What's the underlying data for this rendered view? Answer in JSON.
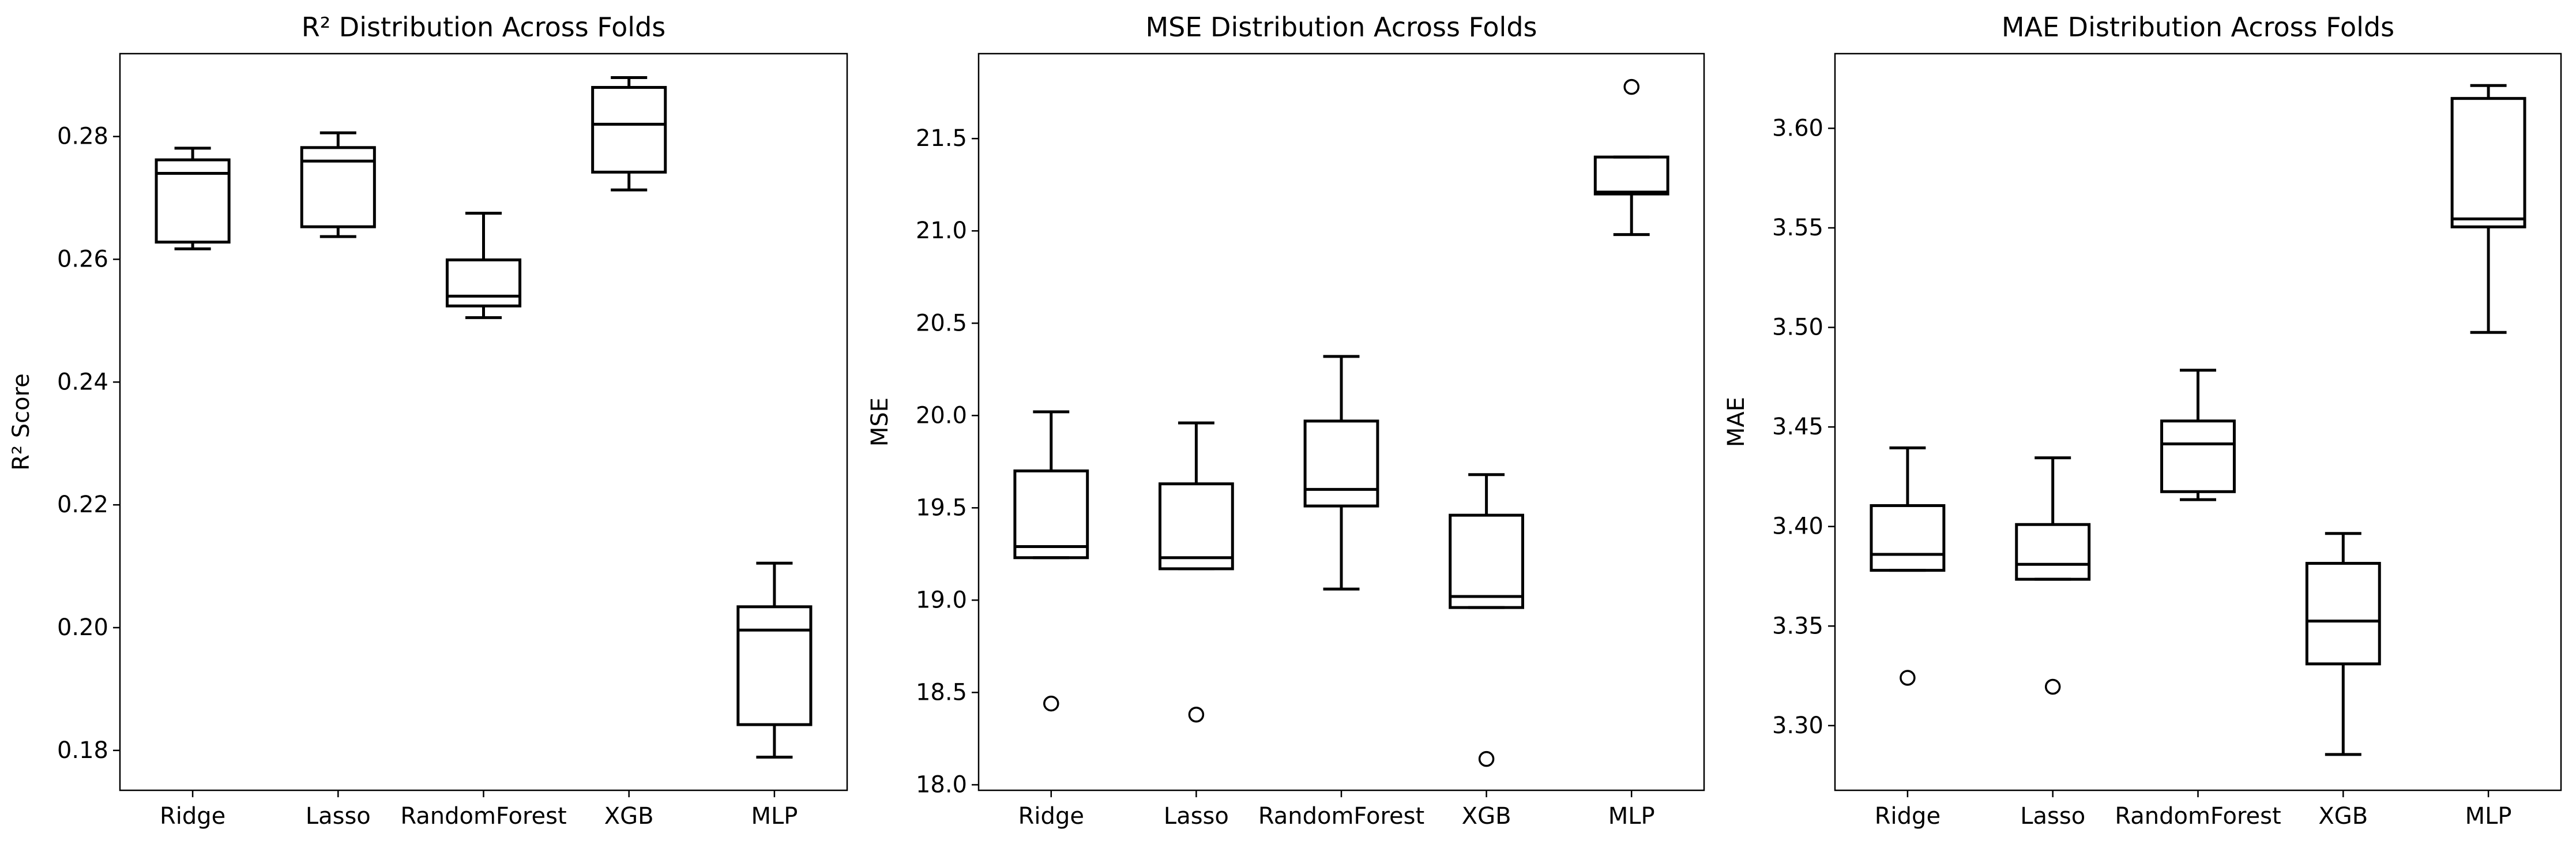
{
  "chart_data": [
    {
      "type": "box",
      "title": "R² Distribution Across Folds",
      "xlabel": "",
      "ylabel": "R² Score",
      "categories": [
        "Ridge",
        "Lasso",
        "RandomForest",
        "XGB",
        "MLP"
      ],
      "ylim": [
        0.1735,
        0.2935
      ],
      "yticks": [
        0.18,
        0.2,
        0.22,
        0.24,
        0.26,
        0.28
      ],
      "ytick_labels": [
        "0.18",
        "0.20",
        "0.22",
        "0.24",
        "0.26",
        "0.28"
      ],
      "grid": false,
      "boxes": [
        {
          "whislo": 0.2617,
          "q1": 0.2628,
          "med": 0.274,
          "q3": 0.2762,
          "whishi": 0.2781,
          "fliers": []
        },
        {
          "whislo": 0.2637,
          "q1": 0.2653,
          "med": 0.276,
          "q3": 0.2782,
          "whishi": 0.2806,
          "fliers": []
        },
        {
          "whislo": 0.2505,
          "q1": 0.2524,
          "med": 0.254,
          "q3": 0.2599,
          "whishi": 0.2675,
          "fliers": []
        },
        {
          "whislo": 0.2713,
          "q1": 0.2742,
          "med": 0.282,
          "q3": 0.288,
          "whishi": 0.2896,
          "fliers": []
        },
        {
          "whislo": 0.1789,
          "q1": 0.1842,
          "med": 0.1996,
          "q3": 0.2034,
          "whishi": 0.2105,
          "fliers": []
        }
      ]
    },
    {
      "type": "box",
      "title": "MSE Distribution Across Folds",
      "xlabel": "",
      "ylabel": "MSE",
      "categories": [
        "Ridge",
        "Lasso",
        "RandomForest",
        "XGB",
        "MLP"
      ],
      "ylim": [
        17.97,
        21.96
      ],
      "yticks": [
        18.0,
        18.5,
        19.0,
        19.5,
        20.0,
        20.5,
        21.0,
        21.5
      ],
      "ytick_labels": [
        "18.0",
        "18.5",
        "19.0",
        "19.5",
        "20.0",
        "20.5",
        "21.0",
        "21.5"
      ],
      "grid": false,
      "boxes": [
        {
          "whislo": 19.23,
          "q1": 19.23,
          "med": 19.29,
          "q3": 19.7,
          "whishi": 20.02,
          "fliers": [
            18.44
          ]
        },
        {
          "whislo": 19.17,
          "q1": 19.17,
          "med": 19.23,
          "q3": 19.63,
          "whishi": 19.96,
          "fliers": [
            18.38
          ]
        },
        {
          "whislo": 19.06,
          "q1": 19.51,
          "med": 19.6,
          "q3": 19.97,
          "whishi": 20.32,
          "fliers": []
        },
        {
          "whislo": 18.96,
          "q1": 18.96,
          "med": 19.02,
          "q3": 19.46,
          "whishi": 19.68,
          "fliers": [
            18.14
          ]
        },
        {
          "whislo": 20.98,
          "q1": 21.2,
          "med": 21.21,
          "q3": 21.4,
          "whishi": 21.4,
          "fliers": [
            21.78
          ]
        }
      ]
    },
    {
      "type": "box",
      "title": "MAE Distribution Across Folds",
      "xlabel": "",
      "ylabel": "MAE",
      "categories": [
        "Ridge",
        "Lasso",
        "RandomForest",
        "XGB",
        "MLP"
      ],
      "ylim": [
        3.2675,
        3.6375
      ],
      "yticks": [
        3.3,
        3.35,
        3.4,
        3.45,
        3.5,
        3.55,
        3.6
      ],
      "ytick_labels": [
        "3.30",
        "3.35",
        "3.40",
        "3.45",
        "3.50",
        "3.55",
        "3.60"
      ],
      "grid": false,
      "boxes": [
        {
          "whislo": 3.378,
          "q1": 3.378,
          "med": 3.386,
          "q3": 3.4105,
          "whishi": 3.4395,
          "fliers": [
            3.324
          ]
        },
        {
          "whislo": 3.3735,
          "q1": 3.3735,
          "med": 3.381,
          "q3": 3.401,
          "whishi": 3.4345,
          "fliers": [
            3.3195
          ]
        },
        {
          "whislo": 3.4135,
          "q1": 3.4175,
          "med": 3.4415,
          "q3": 3.453,
          "whishi": 3.4785,
          "fliers": []
        },
        {
          "whislo": 3.2855,
          "q1": 3.331,
          "med": 3.3525,
          "q3": 3.3815,
          "whishi": 3.3965,
          "fliers": []
        },
        {
          "whislo": 3.4975,
          "q1": 3.5505,
          "med": 3.5545,
          "q3": 3.615,
          "whishi": 3.6215,
          "fliers": []
        }
      ]
    }
  ]
}
